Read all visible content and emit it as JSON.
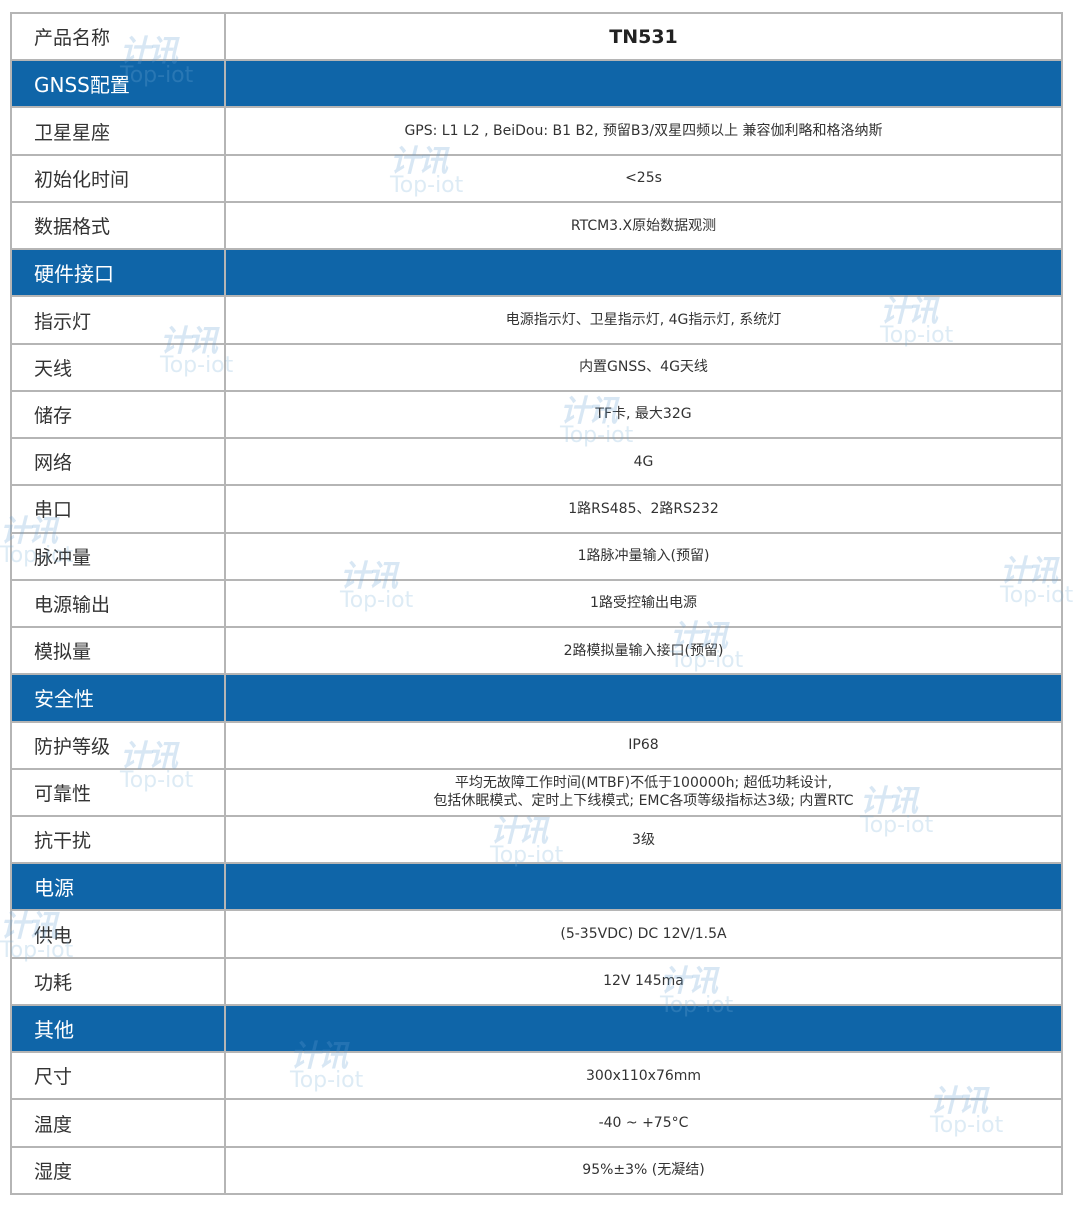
{
  "rows": [
    {
      "type": "title",
      "key": "产品名称",
      "value": "TN531"
    },
    {
      "type": "section",
      "key": "GNSS配置"
    },
    {
      "type": "item",
      "key": "卫星星座",
      "value": "GPS: L1 L2 , BeiDou: B1 B2, 预留B3/双星四频以上 兼容伽利略和格洛纳斯"
    },
    {
      "type": "item",
      "key": "初始化时间",
      "value": "<25s"
    },
    {
      "type": "item",
      "key": "数据格式",
      "value": "RTCM3.X原始数据观测"
    },
    {
      "type": "section",
      "key": "硬件接口"
    },
    {
      "type": "item",
      "key": "指示灯",
      "value": "电源指示灯、卫星指示灯, 4G指示灯, 系统灯"
    },
    {
      "type": "item",
      "key": "天线",
      "value": "内置GNSS、4G天线"
    },
    {
      "type": "item",
      "key": "储存",
      "value": "TF卡, 最大32G"
    },
    {
      "type": "item",
      "key": "网络",
      "value": "4G"
    },
    {
      "type": "item",
      "key": "串口",
      "value": "1路RS485、2路RS232"
    },
    {
      "type": "item",
      "key": "脉冲量",
      "value": "1路脉冲量输入(预留)"
    },
    {
      "type": "item",
      "key": "电源输出",
      "value": "1路受控输出电源"
    },
    {
      "type": "item",
      "key": "模拟量",
      "value": "2路模拟量输入接口(预留)"
    },
    {
      "type": "section",
      "key": "安全性"
    },
    {
      "type": "item",
      "key": "防护等级",
      "value": "IP68"
    },
    {
      "type": "item",
      "key": "可靠性",
      "value": "平均无故障工作时间(MTBF)不低于100000h; 超低功耗设计,\n包括休眠模式、定时上下线模式; EMC各项等级指标达3级; 内置RTC"
    },
    {
      "type": "item",
      "key": "抗干扰",
      "value": "3级"
    },
    {
      "type": "section",
      "key": "电源"
    },
    {
      "type": "item",
      "key": "供电",
      "value": "(5-35VDC) DC 12V/1.5A"
    },
    {
      "type": "item",
      "key": "功耗",
      "value": "12V 145ma"
    },
    {
      "type": "section",
      "key": "其他"
    },
    {
      "type": "item",
      "key": "尺寸",
      "value": "300x110x76mm"
    },
    {
      "type": "item",
      "key": "温度",
      "value": "-40 ~ +75°C"
    },
    {
      "type": "item",
      "key": "湿度",
      "value": "95%±3% (无凝结)"
    }
  ],
  "watermark": {
    "logo_text": "计讯",
    "text": "Top-iot"
  },
  "colors": {
    "section_bg": "#0f65a8",
    "border": "#b5b5b5"
  }
}
